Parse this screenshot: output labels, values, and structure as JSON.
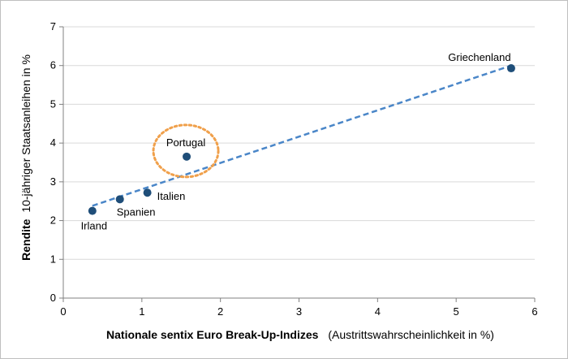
{
  "chart_data": {
    "type": "scatter",
    "title": "",
    "xlabel_bold": "Nationale sentix Euro Break-Up-Indizes",
    "xlabel_normal": "(Austrittswahrscheinlichkeit in %)",
    "ylabel_bold": "Rendite",
    "ylabel_normal": "10-jähriger Staatsanleihen in %",
    "xlim": [
      0,
      6
    ],
    "ylim": [
      0,
      7
    ],
    "xticks": [
      "0",
      "1",
      "2",
      "3",
      "4",
      "5",
      "6"
    ],
    "yticks": [
      "0",
      "1",
      "2",
      "3",
      "4",
      "5",
      "6",
      "7"
    ],
    "grid": "horizontal",
    "legend": "none",
    "series": [
      {
        "points": [
          {
            "label": "Irland",
            "x": 0.37,
            "y": 2.25
          },
          {
            "label": "Spanien",
            "x": 0.72,
            "y": 2.55
          },
          {
            "label": "Italien",
            "x": 1.07,
            "y": 2.72
          },
          {
            "label": "Portugal",
            "x": 1.57,
            "y": 3.65
          },
          {
            "label": "Griechenland",
            "x": 5.7,
            "y": 5.93
          }
        ]
      }
    ],
    "trendline": {
      "x": [
        0.37,
        5.7
      ],
      "y": [
        2.38,
        6.0
      ]
    },
    "highlight": "Portugal",
    "colors": {
      "marker": "#1f4e79",
      "trendline": "#4a86c8",
      "highlight": "#f0a04b",
      "grid": "#d9d9d9",
      "axis": "#808080"
    }
  }
}
